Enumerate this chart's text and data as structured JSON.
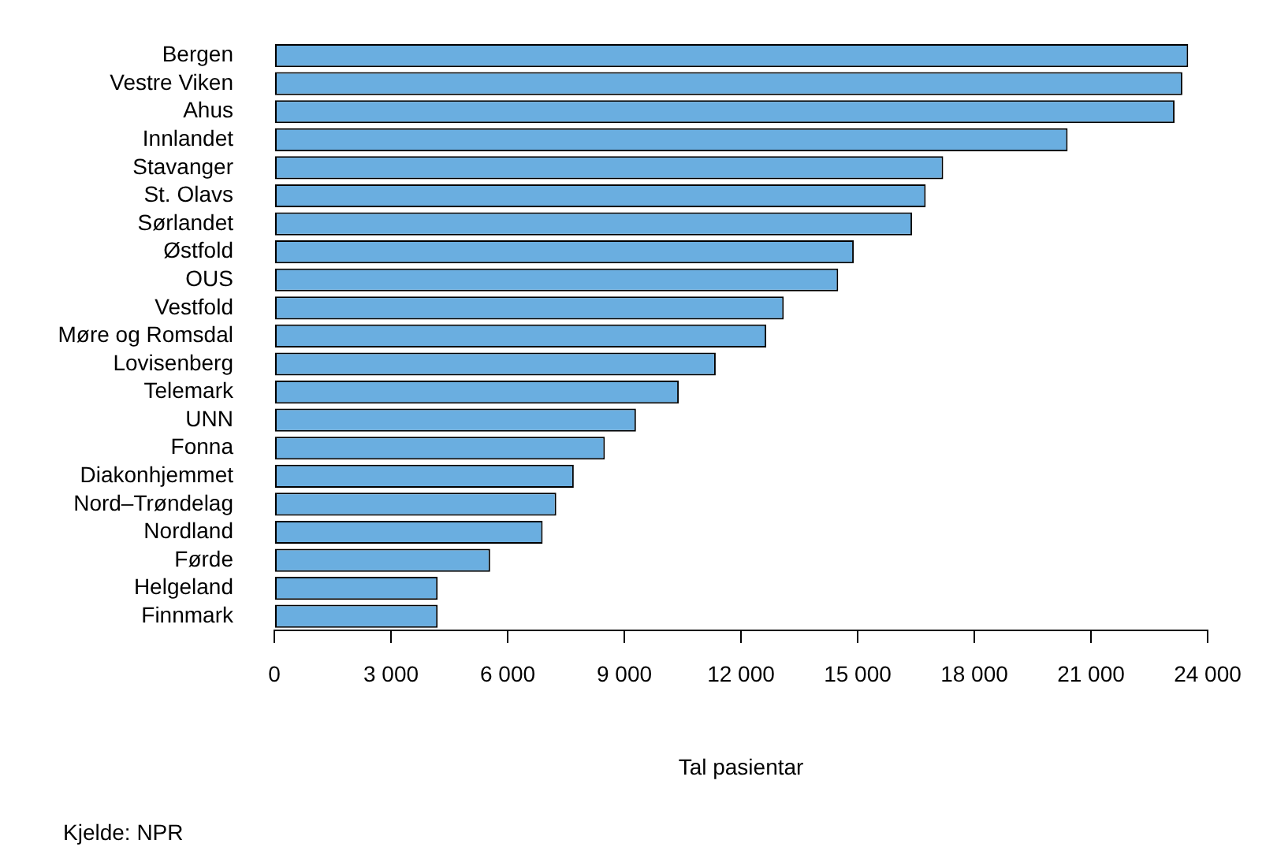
{
  "chart_data": {
    "type": "bar",
    "orientation": "horizontal",
    "categories": [
      "Bergen",
      "Vestre Viken",
      "Ahus",
      "Innlandet",
      "Stavanger",
      "St. Olavs",
      "Sørlandet",
      "Østfold",
      "OUS",
      "Vestfold",
      "Møre og Romsdal",
      "Lovisenberg",
      "Telemark",
      "UNN",
      "Fonna",
      "Diakonhjemmet",
      "Nord–Trøndelag",
      "Nordland",
      "Førde",
      "Helgeland",
      "Finnmark"
    ],
    "values": [
      23500,
      23350,
      23150,
      20400,
      17200,
      16750,
      16400,
      14900,
      14500,
      13100,
      12650,
      11350,
      10400,
      9300,
      8500,
      7700,
      7250,
      6900,
      5550,
      4200,
      4200
    ],
    "color": "#6aaee0",
    "xlim": [
      0,
      24000
    ],
    "xticks": [
      0,
      {
        "value": 3000,
        "label": "3 000"
      },
      {
        "value": 6000,
        "label": "6 000"
      },
      {
        "value": 9000,
        "label": "9 000"
      },
      {
        "value": 12000,
        "label": "12 000"
      },
      {
        "value": 15000,
        "label": "15 000"
      },
      {
        "value": 18000,
        "label": "18 000"
      },
      {
        "value": 21000,
        "label": "21 000"
      },
      {
        "value": 24000,
        "label": "24 000"
      }
    ],
    "xlabel": "Tal pasientar",
    "annotations": [
      "Kjelde: NPR"
    ],
    "grid": false,
    "legend": false
  }
}
